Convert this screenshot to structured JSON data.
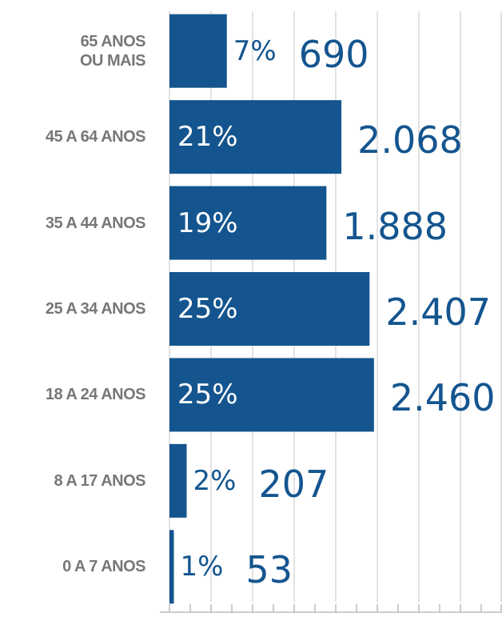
{
  "chart_data": {
    "type": "barh",
    "categories": [
      "65 ANOS\nOU MAIS",
      "45 A 64 ANOS",
      "35 A 44 ANOS",
      "25 A 34 ANOS",
      "18 A 24 ANOS",
      "8 A 17 ANOS",
      "0 A 7 ANOS"
    ],
    "values": [
      690,
      2068,
      1888,
      2407,
      2460,
      207,
      53
    ],
    "value_labels": [
      "690",
      "2.068",
      "1.888",
      "2.407",
      "2.460",
      "207",
      "53"
    ],
    "share_labels": [
      "7%",
      "21%",
      "19%",
      "25%",
      "25%",
      "2%",
      "1%"
    ],
    "color": "#14558f",
    "xlim": [
      0,
      4000
    ],
    "xticks": [
      0,
      250,
      500,
      750,
      1000,
      1250,
      1500,
      1750,
      2000,
      2250,
      2500,
      2750,
      3000,
      3250,
      3500,
      3750,
      4000
    ],
    "grid": true
  }
}
